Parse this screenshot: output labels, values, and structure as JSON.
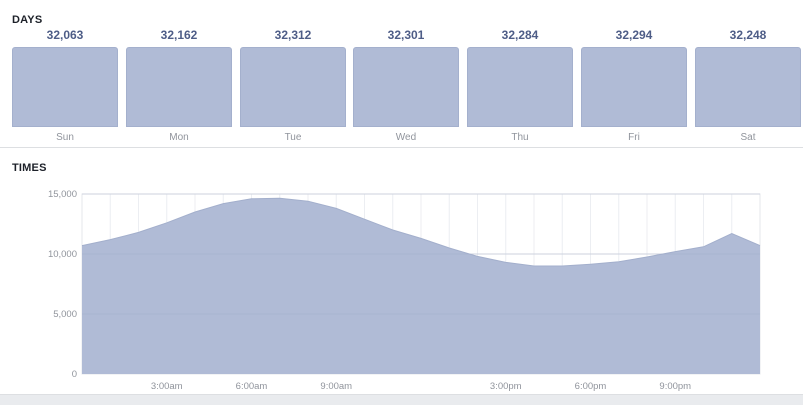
{
  "days": {
    "title": "DAYS",
    "items": [
      {
        "label": "Sun",
        "value": "32,063"
      },
      {
        "label": "Mon",
        "value": "32,162"
      },
      {
        "label": "Tue",
        "value": "32,312"
      },
      {
        "label": "Wed",
        "value": "32,301"
      },
      {
        "label": "Thu",
        "value": "32,284"
      },
      {
        "label": "Fri",
        "value": "32,294"
      },
      {
        "label": "Sat",
        "value": "32,248"
      }
    ]
  },
  "times": {
    "title": "TIMES"
  },
  "chart_data": {
    "type": "area",
    "x": [
      0,
      1,
      2,
      3,
      4,
      5,
      6,
      7,
      8,
      9,
      10,
      11,
      12,
      13,
      14,
      15,
      16,
      17,
      18,
      19,
      20,
      21,
      22,
      23,
      24
    ],
    "series": [
      {
        "values": [
          10700,
          11200,
          11800,
          12600,
          13500,
          14200,
          14600,
          14650,
          14400,
          13800,
          12900,
          12000,
          11300,
          10500,
          9800,
          9300,
          9000,
          9000,
          9150,
          9350,
          9750,
          10200,
          10600,
          11700,
          10700
        ]
      }
    ],
    "x_ticks": [
      {
        "x": 3,
        "label": "3:00am"
      },
      {
        "x": 6,
        "label": "6:00am"
      },
      {
        "x": 9,
        "label": "9:00am"
      },
      {
        "x": 15,
        "label": "3:00pm"
      },
      {
        "x": 18,
        "label": "6:00pm"
      },
      {
        "x": 21,
        "label": "9:00pm"
      }
    ],
    "y_ticks": [
      {
        "value": 0,
        "label": "0"
      },
      {
        "value": 5000,
        "label": "5,000"
      },
      {
        "value": 10000,
        "label": "10,000"
      },
      {
        "value": 15000,
        "label": "15,000"
      }
    ],
    "xlim": [
      0,
      24
    ],
    "ylim": [
      0,
      15000
    ],
    "grid": true,
    "color": "#b0bbd6",
    "line_color": "#a3afcc"
  }
}
